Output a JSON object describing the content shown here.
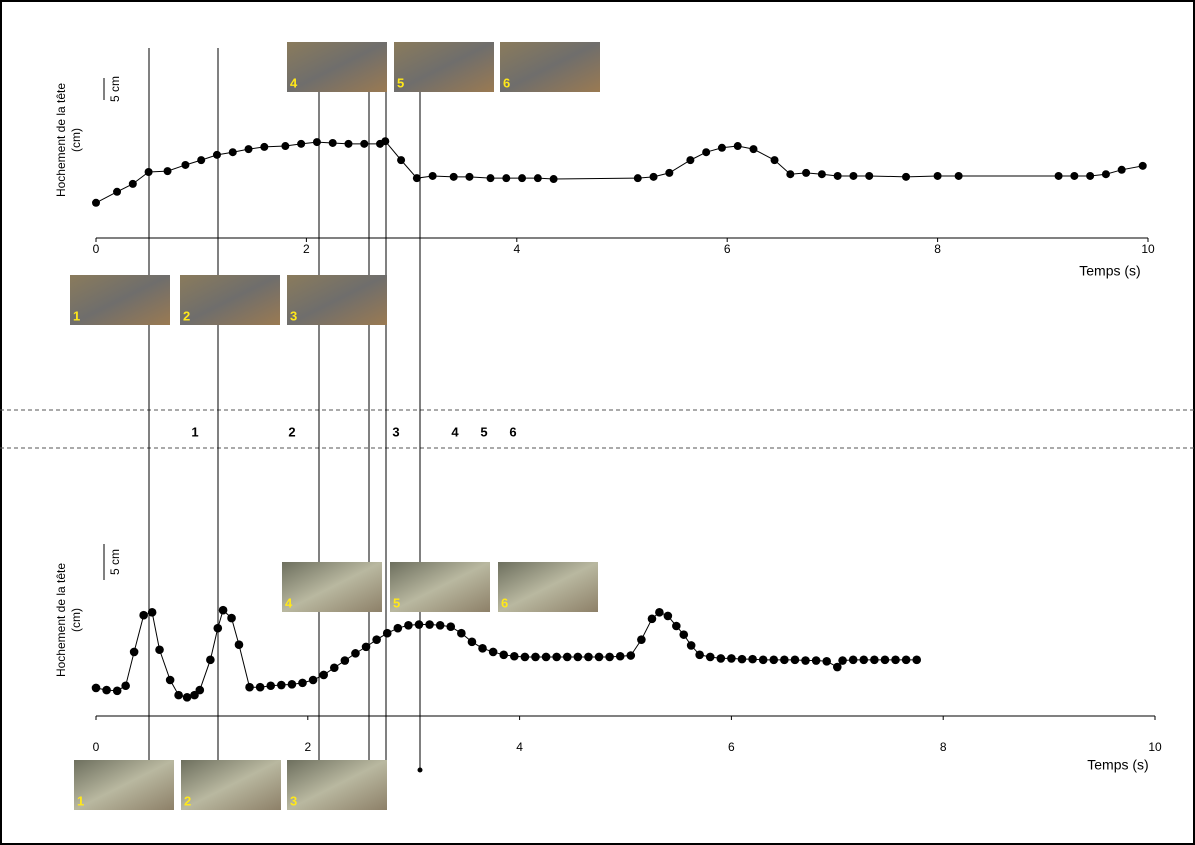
{
  "chart_data": [
    {
      "type": "line",
      "ylabel": "Hochement de la tête",
      "ylabel_unit": "(cm)",
      "xlabel": "Temps (s)",
      "xlim": [
        0,
        10
      ],
      "xticks": [
        0,
        2,
        4,
        6,
        8,
        10
      ],
      "ylim": [
        0,
        45
      ],
      "scale_bar": {
        "label": "5 cm",
        "value": 5
      },
      "frames": [
        "1",
        "2",
        "3",
        "4",
        "5",
        "6"
      ],
      "series": [
        {
          "color": "#000000",
          "x": [
            0,
            0.2,
            0.35,
            0.5,
            0.68,
            0.85,
            1.0,
            1.15,
            1.3,
            1.45,
            1.6,
            1.8,
            1.95,
            2.1,
            2.25,
            2.4,
            2.55,
            2.7,
            2.75,
            2.9,
            3.05,
            3.2,
            3.4,
            3.55,
            3.75,
            3.9,
            4.05,
            4.2,
            4.35,
            5.15,
            5.3,
            5.45,
            5.65,
            5.8,
            5.95,
            6.1,
            6.25,
            6.45,
            6.6,
            6.75,
            6.9,
            7.05,
            7.2,
            7.35,
            7.7,
            8.0,
            8.2,
            9.15,
            9.3,
            9.45,
            9.6,
            9.75,
            9.95
          ],
          "values": [
            8.0,
            10.5,
            12.3,
            15.0,
            15.2,
            16.6,
            17.7,
            18.9,
            19.5,
            20.2,
            20.7,
            20.9,
            21.4,
            21.8,
            21.6,
            21.4,
            21.4,
            21.4,
            22.0,
            17.7,
            13.6,
            14.1,
            13.9,
            13.9,
            13.6,
            13.6,
            13.6,
            13.6,
            13.4,
            13.6,
            13.9,
            14.8,
            17.7,
            19.5,
            20.5,
            20.9,
            20.2,
            17.7,
            14.5,
            14.8,
            14.5,
            14.1,
            14.1,
            14.1,
            13.9,
            14.1,
            14.1,
            14.1,
            14.1,
            14.1,
            14.5,
            15.5,
            16.4
          ]
        }
      ]
    },
    {
      "type": "line",
      "ylabel": "Hochement de la tête",
      "ylabel_unit": "(cm)",
      "xlabel": "Temps (s)",
      "xlim": [
        0,
        10
      ],
      "xticks": [
        0,
        2,
        4,
        6,
        8,
        10
      ],
      "ylim": [
        0,
        30
      ],
      "scale_bar": {
        "label": "5 cm",
        "value": 5
      },
      "frames": [
        "1",
        "2",
        "3",
        "4",
        "5",
        "6"
      ],
      "series": [
        {
          "color": "#000000",
          "x": [
            0,
            0.1,
            0.2,
            0.28,
            0.36,
            0.45,
            0.53,
            0.6,
            0.7,
            0.78,
            0.86,
            0.93,
            0.98,
            1.08,
            1.15,
            1.2,
            1.28,
            1.35,
            1.45,
            1.55,
            1.65,
            1.75,
            1.85,
            1.95,
            2.05,
            2.15,
            2.25,
            2.35,
            2.45,
            2.55,
            2.65,
            2.75,
            2.85,
            2.95,
            3.05,
            3.15,
            3.25,
            3.35,
            3.45,
            3.55,
            3.65,
            3.75,
            3.85,
            3.95,
            4.05,
            4.15,
            4.25,
            4.35,
            4.45,
            4.55,
            4.65,
            4.75,
            4.85,
            4.95,
            5.05,
            5.15,
            5.25,
            5.32,
            5.4,
            5.48,
            5.55,
            5.62,
            5.7,
            5.8,
            5.9,
            6.0,
            6.1,
            6.2,
            6.3,
            6.4,
            6.5,
            6.6,
            6.7,
            6.8,
            6.9,
            7.0,
            7.05,
            7.15,
            7.25,
            7.35,
            7.45,
            7.55,
            7.65,
            7.75
          ],
          "values": [
            3.9,
            3.6,
            3.5,
            4.2,
            8.9,
            14.0,
            14.4,
            9.2,
            5.0,
            2.9,
            2.6,
            2.9,
            3.6,
            7.8,
            12.2,
            14.7,
            13.6,
            9.9,
            4.0,
            4.0,
            4.2,
            4.3,
            4.4,
            4.6,
            5.0,
            5.7,
            6.7,
            7.7,
            8.7,
            9.6,
            10.6,
            11.5,
            12.2,
            12.6,
            12.7,
            12.7,
            12.6,
            12.4,
            11.5,
            10.3,
            9.4,
            8.9,
            8.5,
            8.3,
            8.2,
            8.2,
            8.2,
            8.2,
            8.2,
            8.2,
            8.2,
            8.2,
            8.2,
            8.3,
            8.4,
            10.6,
            13.5,
            14.4,
            13.9,
            12.5,
            11.3,
            9.8,
            8.5,
            8.2,
            8.0,
            8.0,
            7.9,
            7.9,
            7.8,
            7.8,
            7.8,
            7.8,
            7.7,
            7.7,
            7.6,
            6.8,
            7.7,
            7.8,
            7.8,
            7.8,
            7.8,
            7.8,
            7.8,
            7.8
          ]
        }
      ]
    }
  ],
  "phases": [
    "1",
    "2",
    "3",
    "4",
    "5",
    "6"
  ]
}
